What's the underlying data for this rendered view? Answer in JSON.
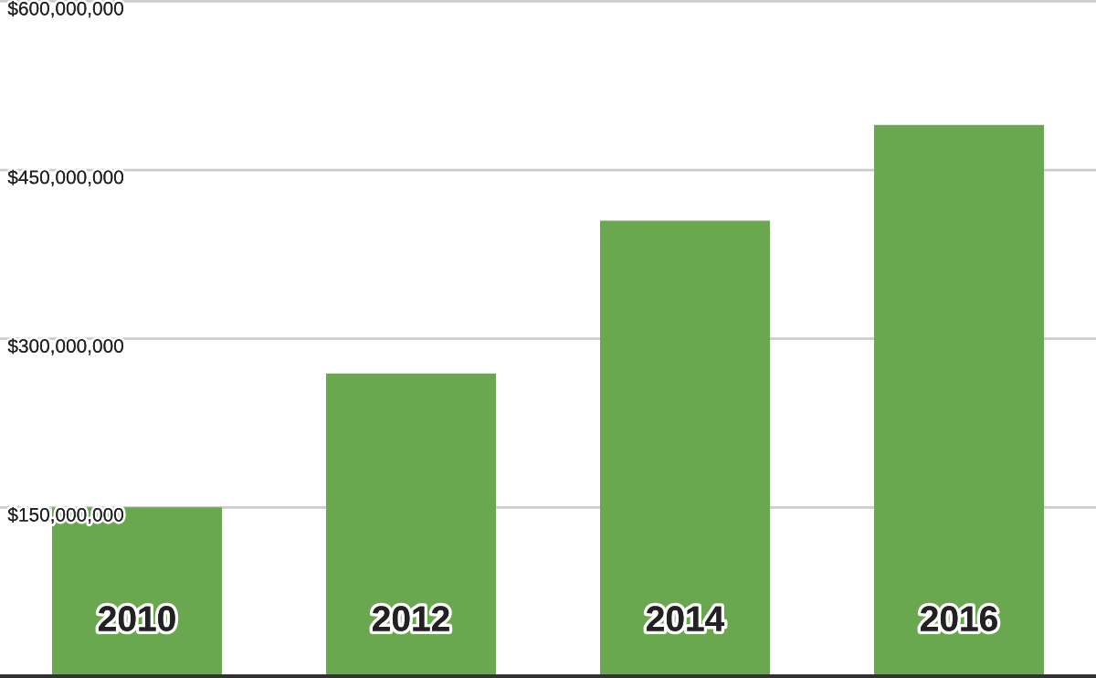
{
  "chart_data": {
    "type": "bar",
    "categories": [
      "2010",
      "2012",
      "2014",
      "2016"
    ],
    "values": [
      150000000,
      269000000,
      405000000,
      490000000
    ],
    "color": "#6aa84f",
    "ylim": [
      0,
      600000000
    ],
    "yticks": [
      {
        "value": 150000000,
        "label": "$150,000,000"
      },
      {
        "value": 300000000,
        "label": "$300,000,000"
      },
      {
        "value": 450000000,
        "label": "$450,000,000"
      },
      {
        "value": 600000000,
        "label": "$600,000,000"
      }
    ],
    "grid": "y"
  }
}
